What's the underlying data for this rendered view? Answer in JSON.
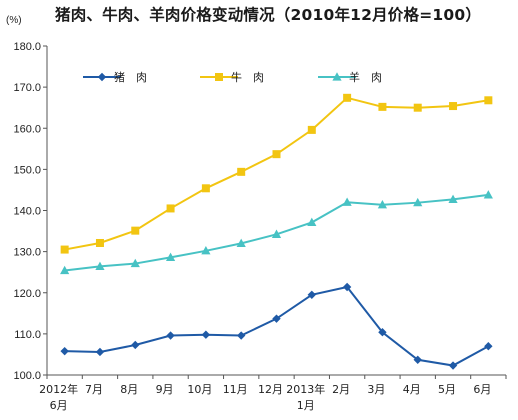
{
  "chart_data": {
    "type": "line",
    "title": "猪肉、牛肉、羊肉价格变动情况（2010年12月价格=100）",
    "unit_label": "(%)",
    "ylim": [
      100,
      180
    ],
    "y_ticks": [
      "100.0",
      "110.0",
      "120.0",
      "130.0",
      "140.0",
      "150.0",
      "160.0",
      "170.0",
      "180.0"
    ],
    "categories": [
      {
        "line1": "2012年",
        "line2": "6月"
      },
      {
        "line1": "7月",
        "line2": ""
      },
      {
        "line1": "8月",
        "line2": ""
      },
      {
        "line1": "9月",
        "line2": ""
      },
      {
        "line1": "10月",
        "line2": ""
      },
      {
        "line1": "11月",
        "line2": ""
      },
      {
        "line1": "12月",
        "line2": ""
      },
      {
        "line1": "2013年",
        "line2": "1月"
      },
      {
        "line1": "2月",
        "line2": ""
      },
      {
        "line1": "3月",
        "line2": ""
      },
      {
        "line1": "4月",
        "line2": ""
      },
      {
        "line1": "5月",
        "line2": ""
      },
      {
        "line1": "6月",
        "line2": ""
      }
    ],
    "series": [
      {
        "name": "猪　肉",
        "marker": "diamond",
        "color": "#1f5aa6",
        "values": [
          105.8,
          105.6,
          107.3,
          109.6,
          109.8,
          109.6,
          113.7,
          119.5,
          121.4,
          110.4,
          103.7,
          102.3,
          107.0
        ]
      },
      {
        "name": "牛　肉",
        "marker": "square",
        "color": "#f2c511",
        "values": [
          130.5,
          132.1,
          135.1,
          140.5,
          145.4,
          149.4,
          153.7,
          159.6,
          167.4,
          165.2,
          165.0,
          165.4,
          166.8
        ]
      },
      {
        "name": "羊　肉",
        "marker": "triangle",
        "color": "#47c2c4",
        "values": [
          125.4,
          126.4,
          127.1,
          128.6,
          130.2,
          132.0,
          134.2,
          137.1,
          142.0,
          141.4,
          141.9,
          142.7,
          143.8
        ]
      }
    ],
    "legend_position": "top-left",
    "grid": false
  }
}
